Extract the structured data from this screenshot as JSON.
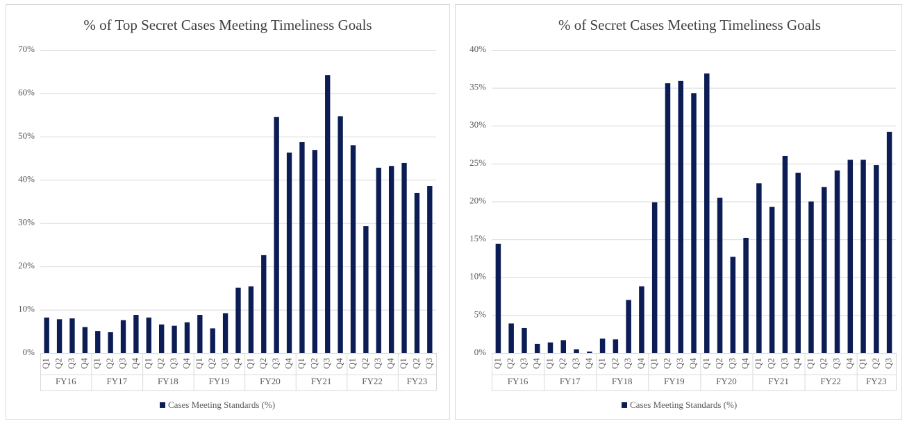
{
  "chart_data": [
    {
      "type": "bar",
      "title": "% of Top Secret Cases Meeting Timeliness Goals",
      "groups": [
        {
          "label": "FY16",
          "quarters": [
            "Q1",
            "Q2",
            "Q3",
            "Q4"
          ]
        },
        {
          "label": "FY17",
          "quarters": [
            "Q1",
            "Q2",
            "Q3",
            "Q4"
          ]
        },
        {
          "label": "FY18",
          "quarters": [
            "Q1",
            "Q2",
            "Q3",
            "Q4"
          ]
        },
        {
          "label": "FY19",
          "quarters": [
            "Q1",
            "Q2",
            "Q3",
            "Q4"
          ]
        },
        {
          "label": "FY20",
          "quarters": [
            "Q1",
            "Q2",
            "Q3",
            "Q4"
          ]
        },
        {
          "label": "FY21",
          "quarters": [
            "Q1",
            "Q2",
            "Q3",
            "Q4"
          ]
        },
        {
          "label": "FY22",
          "quarters": [
            "Q1",
            "Q2",
            "Q3",
            "Q4"
          ]
        },
        {
          "label": "FY23",
          "quarters": [
            "Q1",
            "Q2",
            "Q3"
          ]
        }
      ],
      "series": [
        {
          "name": "Cases Meeting Standards (%)",
          "color": "#0c1d55",
          "values": [
            8.2,
            7.8,
            8.0,
            6.0,
            5.1,
            4.8,
            7.6,
            8.8,
            8.2,
            6.6,
            6.3,
            7.1,
            8.8,
            5.7,
            9.2,
            15.1,
            15.4,
            22.6,
            54.5,
            46.3,
            48.7,
            46.9,
            64.2,
            54.7,
            48.0,
            29.3,
            42.8,
            43.2,
            43.9,
            37.0,
            38.6
          ]
        }
      ],
      "ylim": [
        0,
        70
      ],
      "yticks": [
        {
          "value": 0,
          "label": "0%"
        },
        {
          "value": 10,
          "label": "10%"
        },
        {
          "value": 20,
          "label": "20%"
        },
        {
          "value": 30,
          "label": "30%"
        },
        {
          "value": 40,
          "label": "40%"
        },
        {
          "value": 50,
          "label": "50%"
        },
        {
          "value": 60,
          "label": "60%"
        },
        {
          "value": 70,
          "label": "70%"
        }
      ],
      "grid": true,
      "legend": "bottom"
    },
    {
      "type": "bar",
      "title": "% of Secret Cases Meeting Timeliness Goals",
      "groups": [
        {
          "label": "FY16",
          "quarters": [
            "Q1",
            "Q2",
            "Q3",
            "Q4"
          ]
        },
        {
          "label": "FY17",
          "quarters": [
            "Q1",
            "Q2",
            "Q3",
            "Q4"
          ]
        },
        {
          "label": "FY18",
          "quarters": [
            "Q1",
            "Q2",
            "Q3",
            "Q4"
          ]
        },
        {
          "label": "FY19",
          "quarters": [
            "Q1",
            "Q2",
            "Q3",
            "Q4"
          ]
        },
        {
          "label": "FY20",
          "quarters": [
            "Q1",
            "Q2",
            "Q3",
            "Q4"
          ]
        },
        {
          "label": "FY21",
          "quarters": [
            "Q1",
            "Q2",
            "Q3",
            "Q4"
          ]
        },
        {
          "label": "FY22",
          "quarters": [
            "Q1",
            "Q2",
            "Q3",
            "Q4"
          ]
        },
        {
          "label": "FY23",
          "quarters": [
            "Q1",
            "Q2",
            "Q3"
          ]
        }
      ],
      "series": [
        {
          "name": "Cases Meeting Standards (%)",
          "color": "#0c1d55",
          "values": [
            14.4,
            3.9,
            3.3,
            1.2,
            1.4,
            1.7,
            0.5,
            0.2,
            1.9,
            1.8,
            7.0,
            8.8,
            19.9,
            35.6,
            35.9,
            34.3,
            36.9,
            20.5,
            12.7,
            15.2,
            22.4,
            19.3,
            26.0,
            23.8,
            20.0,
            21.9,
            24.1,
            25.5,
            25.5,
            24.8,
            29.2
          ]
        }
      ],
      "ylim": [
        0,
        40
      ],
      "yticks": [
        {
          "value": 0,
          "label": "0%"
        },
        {
          "value": 5,
          "label": "5%"
        },
        {
          "value": 10,
          "label": "10%"
        },
        {
          "value": 15,
          "label": "15%"
        },
        {
          "value": 20,
          "label": "20%"
        },
        {
          "value": 25,
          "label": "25%"
        },
        {
          "value": 30,
          "label": "30%"
        },
        {
          "value": 35,
          "label": "35%"
        },
        {
          "value": 40,
          "label": "40%"
        }
      ],
      "grid": true,
      "legend": "bottom"
    }
  ]
}
